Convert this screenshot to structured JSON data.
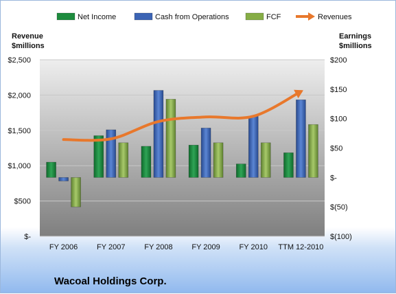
{
  "chart_data": {
    "type": "bar",
    "title": "Wacoal Holdings Corp.",
    "categories": [
      "FY 2006",
      "FY 2007",
      "FY 2008",
      "FY 2009",
      "FY 2010",
      "TTM 12-2010"
    ],
    "series": [
      {
        "name": "Net Income",
        "kind": "bar",
        "axis": "right",
        "color": "#1e8c3e",
        "values": [
          26,
          71,
          53,
          55,
          23,
          42
        ]
      },
      {
        "name": "Cash from Operations",
        "kind": "bar",
        "axis": "right",
        "color": "#3c64b4",
        "values": [
          -6,
          81,
          148,
          84,
          104,
          132
        ]
      },
      {
        "name": "FCF",
        "kind": "bar",
        "axis": "right",
        "color": "#86ad46",
        "values": [
          -50,
          59,
          133,
          59,
          59,
          90
        ]
      },
      {
        "name": "Revenues",
        "kind": "line",
        "axis": "left",
        "color": "#e8782c",
        "values": [
          1370,
          1380,
          1625,
          1690,
          1700,
          2050
        ]
      }
    ],
    "left_axis": {
      "label_line1": "Revenue",
      "label_line2": "$millions",
      "min": 0,
      "max": 2500,
      "ticks": [
        "$-",
        "$500",
        "$1,000",
        "$1,500",
        "$2,000",
        "$2,500"
      ]
    },
    "right_axis": {
      "label_line1": "Earnings",
      "label_line2": "$millions",
      "min": -100,
      "max": 200,
      "ticks": [
        "$(100)",
        "$(50)",
        "$-",
        "$50",
        "$100",
        "$150",
        "$200"
      ]
    },
    "legend_position": "top",
    "grid": true
  }
}
